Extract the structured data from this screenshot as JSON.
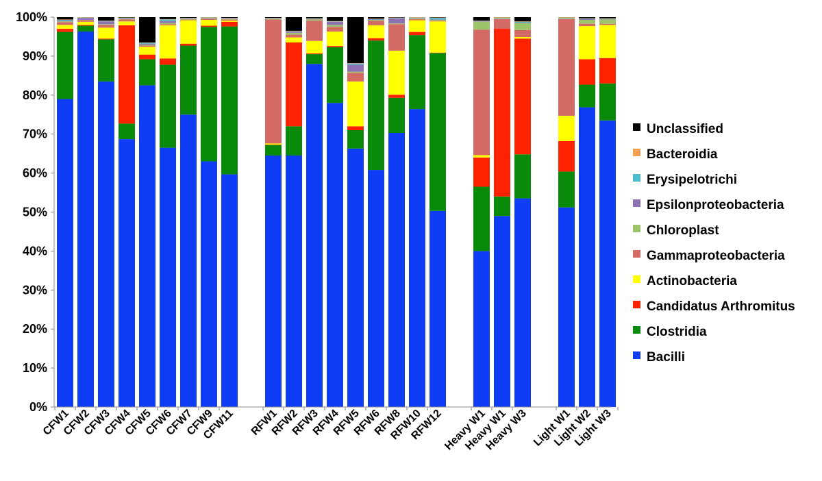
{
  "chart_data": {
    "type": "bar",
    "stacked": true,
    "normalized_percent": true,
    "title": "",
    "xlabel": "",
    "ylabel": "",
    "ylim": [
      0,
      100
    ],
    "y_ticks": [
      "0%",
      "10%",
      "20%",
      "30%",
      "40%",
      "50%",
      "60%",
      "70%",
      "80%",
      "90%",
      "100%"
    ],
    "grid": false,
    "legend_position": "right",
    "groups": [
      [
        "CFW1",
        "CFW2",
        "CFW3",
        "CFW4",
        "CFW5",
        "CFW6",
        "CFW7",
        "CFW9",
        "CFW11"
      ],
      [
        "RFW1",
        "RFW2",
        "RFW3",
        "RFW4",
        "RFW5",
        "RFW6",
        "RFW8",
        "RFW10",
        "RFW12"
      ],
      [
        "Heavy W1",
        "Heavy W1",
        "Heavy W3"
      ],
      [
        "Light W1",
        "Light W2",
        "Light W3"
      ]
    ],
    "categories": [
      "CFW1",
      "CFW2",
      "CFW3",
      "CFW4",
      "CFW5",
      "CFW6",
      "CFW7",
      "CFW9",
      "CFW11",
      "RFW1",
      "RFW2",
      "RFW3",
      "RFW4",
      "RFW5",
      "RFW6",
      "RFW8",
      "RFW10",
      "RFW12",
      "Heavy W1",
      "Heavy W1",
      "Heavy W3",
      "Light W1",
      "Light W2",
      "Light W3"
    ],
    "series": [
      {
        "name": "Bacilli",
        "color": "#0f3cf5",
        "values": [
          79,
          96.3,
          83.5,
          68.7,
          82.5,
          66.5,
          75,
          63,
          59.8,
          64.5,
          64.5,
          88,
          78,
          66.3,
          60.8,
          70.3,
          76.5,
          50.3,
          40,
          49,
          53.5,
          51.2,
          76.8,
          73.5
        ]
      },
      {
        "name": "Clostridia",
        "color": "#0a8a0a",
        "values": [
          17.2,
          1.5,
          10.8,
          4,
          6.7,
          21.3,
          17.7,
          34.5,
          38,
          2.7,
          7.5,
          2.5,
          14.3,
          4.7,
          33.2,
          9,
          19,
          40.5,
          16.5,
          5,
          11.3,
          9.2,
          5.8,
          9.5
        ]
      },
      {
        "name": "Candidatus Arthromitus",
        "color": "#ff2200",
        "values": [
          0.8,
          0.2,
          0.2,
          25.2,
          1.2,
          1.6,
          0.5,
          0.3,
          1.2,
          0.1,
          21.5,
          0.2,
          0.3,
          1,
          0.6,
          0.8,
          0.8,
          0.1,
          7.5,
          43,
          29.7,
          7.8,
          6.5,
          6.5
        ]
      },
      {
        "name": "Actinobacteria",
        "color": "#ffff00",
        "values": [
          1,
          0.8,
          2.8,
          1,
          2,
          8.5,
          6,
          1.5,
          0.3,
          0.3,
          1.3,
          3.2,
          3.7,
          11.5,
          3.3,
          11.3,
          3,
          8,
          0.6,
          0,
          0.4,
          6.5,
          8.5,
          8.5
        ]
      },
      {
        "name": "Gammaproteobacteria",
        "color": "#d46a64",
        "values": [
          0.7,
          0.4,
          0.7,
          0.5,
          0.3,
          0.3,
          0.2,
          0.3,
          0.3,
          31.8,
          0.7,
          5.2,
          1.2,
          2.2,
          1.2,
          6.8,
          0.3,
          0.2,
          32.2,
          2.5,
          1.8,
          24.8,
          0.6,
          0.3
        ]
      },
      {
        "name": "Chloroplast",
        "color": "#9ec46a",
        "values": [
          0.2,
          0.1,
          0.2,
          0.1,
          0.2,
          0.3,
          0.1,
          0.1,
          0.1,
          0.1,
          0.5,
          0.3,
          0.5,
          0.3,
          0.2,
          0.2,
          0.2,
          0.2,
          2,
          0.2,
          1.8,
          0.2,
          1,
          1.1
        ]
      },
      {
        "name": "Epsilonproteobacteria",
        "color": "#8e72b4",
        "values": [
          0.2,
          0.5,
          0.7,
          0.2,
          0.3,
          0.5,
          0.1,
          0.1,
          0.1,
          0.1,
          0.3,
          0.1,
          0.8,
          1.8,
          0.1,
          1.3,
          0.1,
          0.1,
          0.1,
          0.1,
          0.1,
          0.1,
          0.2,
          0.1
        ]
      },
      {
        "name": "Erysipelotrichi",
        "color": "#4bbccc",
        "values": [
          0.2,
          0.1,
          0.1,
          0.1,
          0.2,
          0.4,
          0.1,
          0.1,
          0.1,
          0.1,
          0.1,
          0.1,
          0.1,
          0.3,
          0.1,
          0.1,
          0.1,
          0.4,
          0.1,
          0.1,
          0.2,
          0.1,
          0.1,
          0.1
        ]
      },
      {
        "name": "Bacteroidia",
        "color": "#f4a050",
        "values": [
          0.1,
          0.1,
          0.1,
          0.1,
          0.1,
          0.1,
          0.1,
          0.1,
          0.1,
          0.1,
          0.1,
          0.1,
          0.1,
          0.1,
          0.1,
          0.1,
          0.1,
          0.1,
          0.1,
          0.1,
          0.1,
          0.1,
          0.1,
          0.1
        ]
      },
      {
        "name": "Unclassified",
        "color": "#000000",
        "values": [
          0.6,
          0,
          0.9,
          0.1,
          6.5,
          0.5,
          0.2,
          0,
          0.2,
          0.2,
          3.5,
          0.3,
          1,
          11.8,
          0.4,
          0.1,
          0,
          0.1,
          0.9,
          0,
          1.1,
          0,
          0.3,
          0.3
        ]
      }
    ]
  }
}
